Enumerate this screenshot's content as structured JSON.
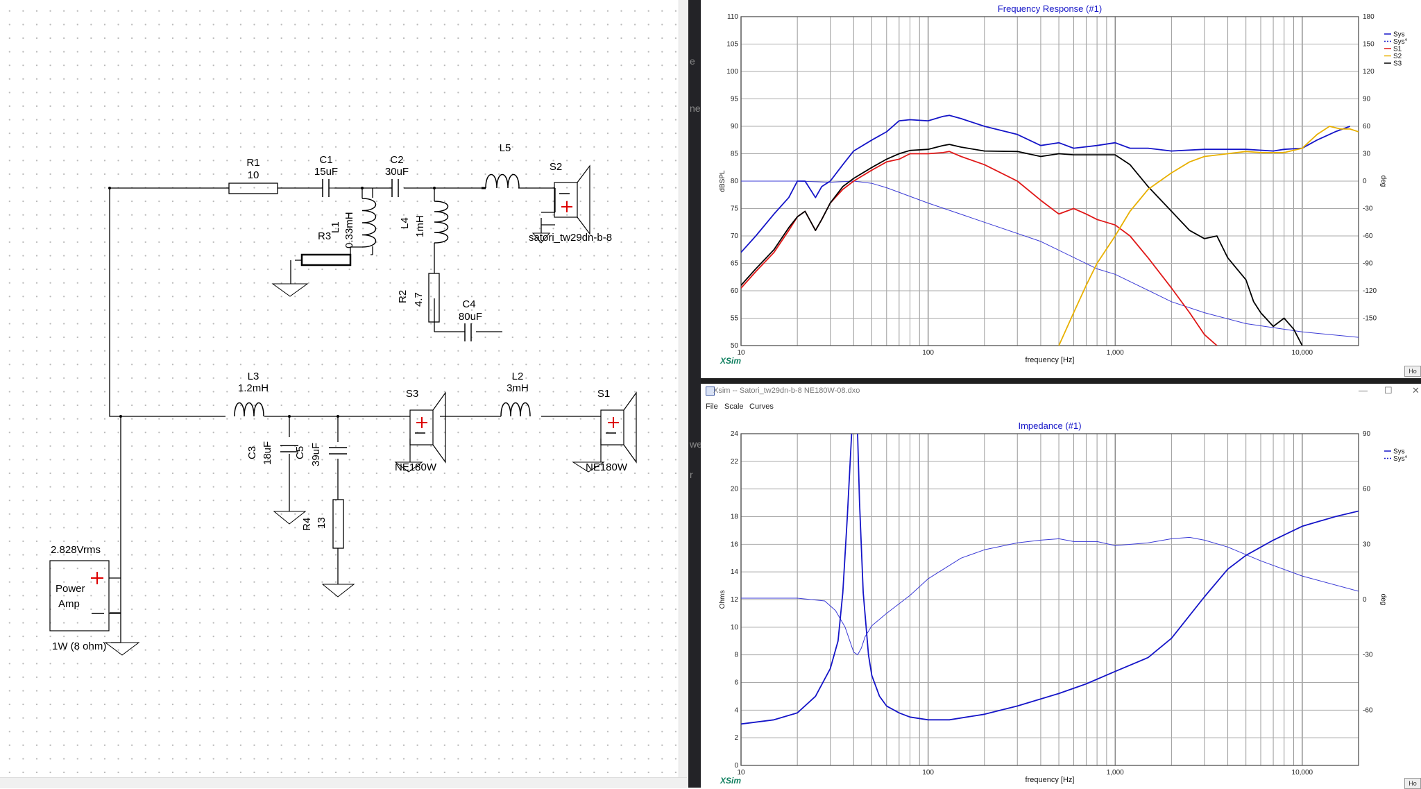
{
  "schematic": {
    "components": {
      "r1": {
        "name": "R1",
        "value": "10"
      },
      "c1": {
        "name": "C1",
        "value": "15uF"
      },
      "c2": {
        "name": "C2",
        "value": "30uF"
      },
      "l5": {
        "name": "L5"
      },
      "s2": {
        "name": "S2",
        "model": "satori_tw29dn-b-8"
      },
      "r3": {
        "name": "R3"
      },
      "l1": {
        "name": "L1",
        "value": "0.33mH"
      },
      "l4": {
        "name": "L4",
        "value": "1mH"
      },
      "r2": {
        "name": "R2",
        "value": "4.7"
      },
      "c4": {
        "name": "C4",
        "value": "80uF"
      },
      "l3": {
        "name": "L3",
        "value": "1.2mH"
      },
      "l2": {
        "name": "L2",
        "value": "3mH"
      },
      "s3": {
        "name": "S3",
        "model": "NE180W"
      },
      "s1": {
        "name": "S1",
        "model": "NE180W"
      },
      "c3": {
        "name": "C3",
        "value": "18uF"
      },
      "c5": {
        "name": "C5",
        "value": "39uF"
      },
      "r4": {
        "name": "R4",
        "value": "13"
      }
    },
    "amp": {
      "voltage": "2.828Vrms",
      "label_line1": "Power",
      "label_line2": "Amp",
      "power": "1W (8 ohm)"
    }
  },
  "fragments": [
    "e",
    "ne",
    "we",
    "r"
  ],
  "chart_data": [
    {
      "type": "line",
      "title": "Frequency Response (#1)",
      "xlabel": "frequency [Hz]",
      "ylabel": "dBSPL",
      "y2label": "deg",
      "x_scale": "log",
      "xlim": [
        10,
        20000
      ],
      "ylim": [
        50,
        110
      ],
      "y2lim": [
        -180,
        180
      ],
      "x_ticks": [
        "10",
        "100",
        "1,000",
        "10,000"
      ],
      "y_ticks": [
        "110",
        "105",
        "100",
        "95",
        "90",
        "85",
        "80",
        "75",
        "70",
        "65",
        "60",
        "55",
        "50"
      ],
      "y2_ticks": [
        "180",
        "150",
        "120",
        "90",
        "60",
        "30",
        "0",
        "-30",
        "-60",
        "-90",
        "-120",
        "-150"
      ],
      "grid": true,
      "legend_position": "top-right",
      "brand": "XSim",
      "legend": [
        "Sys",
        "Sys°",
        "S1",
        "S2",
        "S3"
      ],
      "colors": {
        "Sys": "#1515c8",
        "S1": "#e01818",
        "S2": "#e8b000",
        "S3": "#000000",
        "phase": "#3b3bd6"
      },
      "series": [
        {
          "name": "Sys",
          "color": "#1515c8",
          "x": [
            10,
            12,
            15,
            18,
            20,
            22,
            25,
            27,
            30,
            35,
            40,
            50,
            60,
            70,
            80,
            100,
            120,
            130,
            150,
            200,
            300,
            400,
            500,
            600,
            800,
            1000,
            1200,
            1500,
            2000,
            3000,
            5000,
            7000,
            8000,
            10000,
            12000,
            15000,
            18000
          ],
          "y": [
            67,
            70,
            74,
            77,
            80,
            80,
            77,
            79,
            80,
            83,
            85.5,
            87.5,
            89,
            91,
            91.2,
            91,
            91.8,
            92,
            91.4,
            90,
            88.5,
            86.5,
            87,
            86,
            86.5,
            87,
            86,
            86,
            85.5,
            85.8,
            85.8,
            85.5,
            85.8,
            86,
            87.5,
            89,
            90
          ]
        },
        {
          "name": "S1",
          "color": "#e01818",
          "x": [
            10,
            12,
            15,
            18,
            20,
            22,
            25,
            27,
            30,
            35,
            40,
            50,
            60,
            70,
            80,
            100,
            120,
            130,
            150,
            200,
            300,
            400,
            500,
            600,
            700,
            800,
            1000,
            1200,
            1500,
            2000,
            2500,
            3000,
            3500
          ],
          "y": [
            60.5,
            63.5,
            67,
            71,
            73.5,
            74.5,
            71,
            73,
            76,
            78.5,
            80,
            82,
            83.5,
            84,
            85,
            85,
            85.2,
            85.4,
            84.5,
            83,
            80,
            76.5,
            74,
            75,
            74,
            73,
            72,
            70,
            66,
            60.5,
            56,
            52,
            50
          ]
        },
        {
          "name": "S3",
          "color": "#000000",
          "x": [
            10,
            12,
            15,
            18,
            20,
            22,
            25,
            27,
            30,
            35,
            40,
            50,
            60,
            70,
            80,
            100,
            120,
            130,
            150,
            200,
            300,
            400,
            500,
            600,
            800,
            1000,
            1200,
            1500,
            2000,
            2500,
            3000,
            3500,
            4000,
            5000,
            5500,
            6000,
            7000,
            8000,
            9000,
            10000
          ],
          "y": [
            61,
            64,
            67.5,
            71.5,
            73.5,
            74.5,
            71,
            73,
            76,
            79,
            80.5,
            82.5,
            84,
            85,
            85.6,
            85.8,
            86.5,
            86.7,
            86.2,
            85.5,
            85.4,
            84.5,
            85,
            84.8,
            84.8,
            84.8,
            83,
            79,
            74.5,
            71,
            69.5,
            70,
            66,
            62,
            58,
            56,
            53.5,
            55,
            53,
            50
          ]
        },
        {
          "name": "S2",
          "color": "#e8b000",
          "x": [
            500,
            600,
            700,
            800,
            1000,
            1200,
            1500,
            2000,
            2500,
            3000,
            4000,
            5000,
            6000,
            8000,
            10000,
            12000,
            14000,
            16000,
            18000,
            20000
          ],
          "y": [
            50,
            56,
            61,
            65,
            70,
            74.5,
            78.5,
            81.5,
            83.5,
            84.5,
            85,
            85.4,
            85.2,
            85.2,
            86,
            88.5,
            90,
            89.5,
            89.5,
            89
          ]
        },
        {
          "name": "Sys°",
          "color": "#3b3bd6",
          "x": [
            10,
            20,
            30,
            40,
            45,
            50,
            60,
            100,
            200,
            400,
            800,
            1000,
            2000,
            3000,
            5000,
            10000,
            20000
          ],
          "y": [
            80,
            80,
            79.8,
            80,
            79.8,
            79.6,
            78.8,
            76,
            72.5,
            69,
            64,
            63,
            58,
            56,
            54,
            52.5,
            51.5
          ]
        }
      ]
    },
    {
      "type": "line",
      "title": "Impedance (#1)",
      "xlabel": "frequency [Hz]",
      "ylabel": "Ohms",
      "y2label": "deg",
      "x_scale": "log",
      "xlim": [
        10,
        20000
      ],
      "ylim": [
        0,
        24
      ],
      "y2lim": [
        -90,
        90
      ],
      "x_ticks": [
        "10",
        "100",
        "1,000",
        "10,000"
      ],
      "y_ticks": [
        "24",
        "22",
        "20",
        "18",
        "16",
        "14",
        "12",
        "10",
        "8",
        "6",
        "4",
        "2",
        "0"
      ],
      "y2_ticks": [
        "90",
        "60",
        "30",
        "0",
        "-30",
        "-60"
      ],
      "grid": true,
      "legend_position": "top-right",
      "brand": "XSim",
      "legend": [
        "Sys",
        "Sys°"
      ],
      "window": {
        "title": "Xsim -- Satori_tw29dn-b-8  NE180W-08.dxo",
        "menus": [
          "File",
          "Scale",
          "Curves"
        ]
      },
      "series": [
        {
          "name": "Sys",
          "color": "#1515c8",
          "x": [
            10,
            15,
            20,
            25,
            30,
            33,
            35,
            37,
            39,
            40,
            41,
            42,
            43,
            45,
            48,
            50,
            55,
            60,
            70,
            80,
            100,
            130,
            200,
            300,
            500,
            700,
            1000,
            1500,
            2000,
            3000,
            4000,
            5000,
            7000,
            10000,
            15000,
            20000
          ],
          "y": [
            3,
            3.3,
            3.8,
            5,
            7,
            9,
            12.5,
            18,
            24,
            28,
            28,
            24,
            19,
            12.5,
            8,
            6.5,
            5,
            4.3,
            3.8,
            3.5,
            3.3,
            3.3,
            3.7,
            4.3,
            5.2,
            5.9,
            6.8,
            7.8,
            9.2,
            12.2,
            14.2,
            15.2,
            16.3,
            17.3,
            18,
            18.4
          ]
        },
        {
          "name": "Sys°",
          "color": "#3b3bd6",
          "x": [
            10,
            20,
            28,
            32,
            36,
            40,
            42,
            44,
            46,
            50,
            60,
            80,
            100,
            150,
            200,
            300,
            400,
            500,
            600,
            800,
            1000,
            1500,
            2000,
            2500,
            3000,
            4000,
            6000,
            10000,
            20000
          ],
          "y": [
            12.1,
            12.1,
            11.9,
            11.2,
            10,
            8.2,
            8,
            8.5,
            9.3,
            10.1,
            11,
            12.3,
            13.5,
            15,
            15.6,
            16.1,
            16.3,
            16.4,
            16.2,
            16.2,
            15.9,
            16.1,
            16.4,
            16.5,
            16.3,
            15.8,
            14.8,
            13.7,
            12.6
          ]
        }
      ]
    }
  ]
}
